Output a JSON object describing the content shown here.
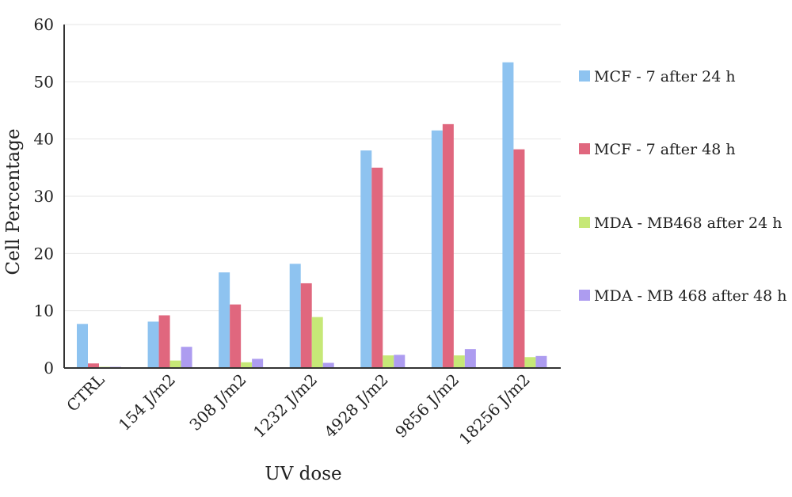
{
  "chart_data": {
    "type": "bar",
    "xlabel": "UV dose",
    "ylabel": "Cell Percentage",
    "ylim": [
      0,
      60
    ],
    "yticks": [
      0,
      10,
      20,
      30,
      40,
      50,
      60
    ],
    "grid": true,
    "legend_position": "right",
    "categories": [
      "CTRL",
      "154 J/m2",
      "308 J/m2",
      "1232 J/m2",
      "4928 J/m2",
      "9856 J/m2",
      "18256 J/m2"
    ],
    "series": [
      {
        "name": "MCF - 7 after 24 h",
        "color": "#8ec3f0",
        "values": [
          7.7,
          8.1,
          16.7,
          18.2,
          38.0,
          41.5,
          53.4
        ]
      },
      {
        "name": "MCF - 7 after 48 h",
        "color": "#e0677e",
        "values": [
          0.8,
          9.2,
          11.1,
          14.8,
          35.0,
          42.6,
          38.2
        ]
      },
      {
        "name": "MDA - MB468 after 24 h",
        "color": "#c6e877",
        "values": [
          0.2,
          1.3,
          1.0,
          8.9,
          2.2,
          2.2,
          1.9
        ]
      },
      {
        "name": "MDA - MB 468 after 48 h",
        "color": "#ad9cf0",
        "values": [
          0.2,
          3.7,
          1.6,
          0.9,
          2.3,
          3.3,
          2.1
        ]
      }
    ]
  }
}
